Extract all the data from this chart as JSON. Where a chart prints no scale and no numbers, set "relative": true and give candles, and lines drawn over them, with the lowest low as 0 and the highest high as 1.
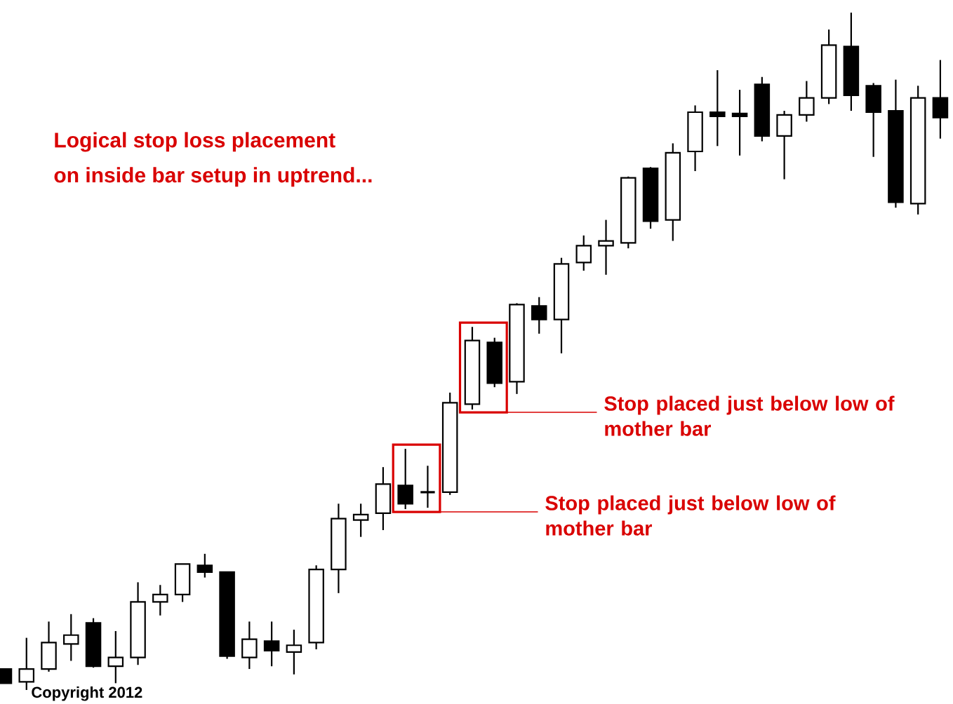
{
  "chart_data": {
    "type": "candlestick",
    "relative": true,
    "title": "Logical stop loss placement",
    "subtitle": "on inside bar setup in uptrend...",
    "categories": [
      null,
      null,
      null,
      null,
      null,
      null,
      null,
      null,
      null,
      null,
      null,
      null,
      null,
      null,
      null,
      null,
      null,
      null,
      null,
      null,
      null,
      null,
      null,
      null,
      null,
      null,
      null,
      null,
      null,
      null,
      null,
      null,
      null,
      null,
      null,
      null,
      null,
      null,
      null,
      null,
      null,
      null,
      null
    ],
    "ohlc": [
      [
        0.031,
        0.031,
        0.01,
        0.01
      ],
      [
        0.012,
        0.077,
        0,
        0.031
      ],
      [
        0.031,
        0.101,
        0.027,
        0.07
      ],
      [
        0.068,
        0.112,
        0.043,
        0.081
      ],
      [
        0.099,
        0.106,
        0.033,
        0.035
      ],
      [
        0.035,
        0.087,
        0.01,
        0.048
      ],
      [
        0.048,
        0.159,
        0.037,
        0.13
      ],
      [
        0.13,
        0.155,
        0.11,
        0.141
      ],
      [
        0.141,
        0.186,
        0.13,
        0.186
      ],
      [
        0.184,
        0.201,
        0.166,
        0.174
      ],
      [
        0.174,
        0.174,
        0.046,
        0.05
      ],
      [
        0.048,
        0.101,
        0.031,
        0.075
      ],
      [
        0.072,
        0.101,
        0.035,
        0.058
      ],
      [
        0.056,
        0.089,
        0.023,
        0.066
      ],
      [
        0.07,
        0.184,
        0.06,
        0.178
      ],
      [
        0.178,
        0.275,
        0.143,
        0.253
      ],
      [
        0.251,
        0.275,
        0.226,
        0.259
      ],
      [
        0.261,
        0.329,
        0.236,
        0.304
      ],
      [
        0.302,
        0.356,
        0.267,
        0.275
      ],
      [
        0.292,
        0.331,
        0.269,
        0.292
      ],
      [
        0.292,
        0.439,
        0.288,
        0.424
      ],
      [
        0.422,
        0.536,
        0.414,
        0.516
      ],
      [
        0.513,
        0.52,
        0.447,
        0.453
      ],
      [
        0.455,
        0.571,
        0.437,
        0.569
      ],
      [
        0.567,
        0.58,
        0.526,
        0.547
      ],
      [
        0.547,
        0.638,
        0.497,
        0.629
      ],
      [
        0.631,
        0.671,
        0.619,
        0.656
      ],
      [
        0.656,
        0.694,
        0.613,
        0.663
      ],
      [
        0.66,
        0.758,
        0.652,
        0.756
      ],
      [
        0.77,
        0.772,
        0.681,
        0.692
      ],
      [
        0.694,
        0.807,
        0.663,
        0.793
      ],
      [
        0.795,
        0.863,
        0.766,
        0.853
      ],
      [
        0.853,
        0.915,
        0.803,
        0.847
      ],
      [
        0.851,
        0.886,
        0.789,
        0.847
      ],
      [
        0.894,
        0.905,
        0.81,
        0.818
      ],
      [
        0.818,
        0.855,
        0.754,
        0.849
      ],
      [
        0.849,
        0.899,
        0.839,
        0.874
      ],
      [
        0.874,
        0.975,
        0.865,
        0.952
      ],
      [
        0.95,
        1.0,
        0.855,
        0.878
      ],
      [
        0.892,
        0.896,
        0.787,
        0.853
      ],
      [
        0.855,
        0.901,
        0.712,
        0.72
      ],
      [
        0.718,
        0.892,
        0.702,
        0.874
      ],
      [
        0.874,
        0.93,
        0.814,
        0.845
      ]
    ],
    "annotations": [
      "Stop placed just below low of mother bar",
      "Stop placed just below low of mother bar",
      "Copyright 2012"
    ]
  }
}
